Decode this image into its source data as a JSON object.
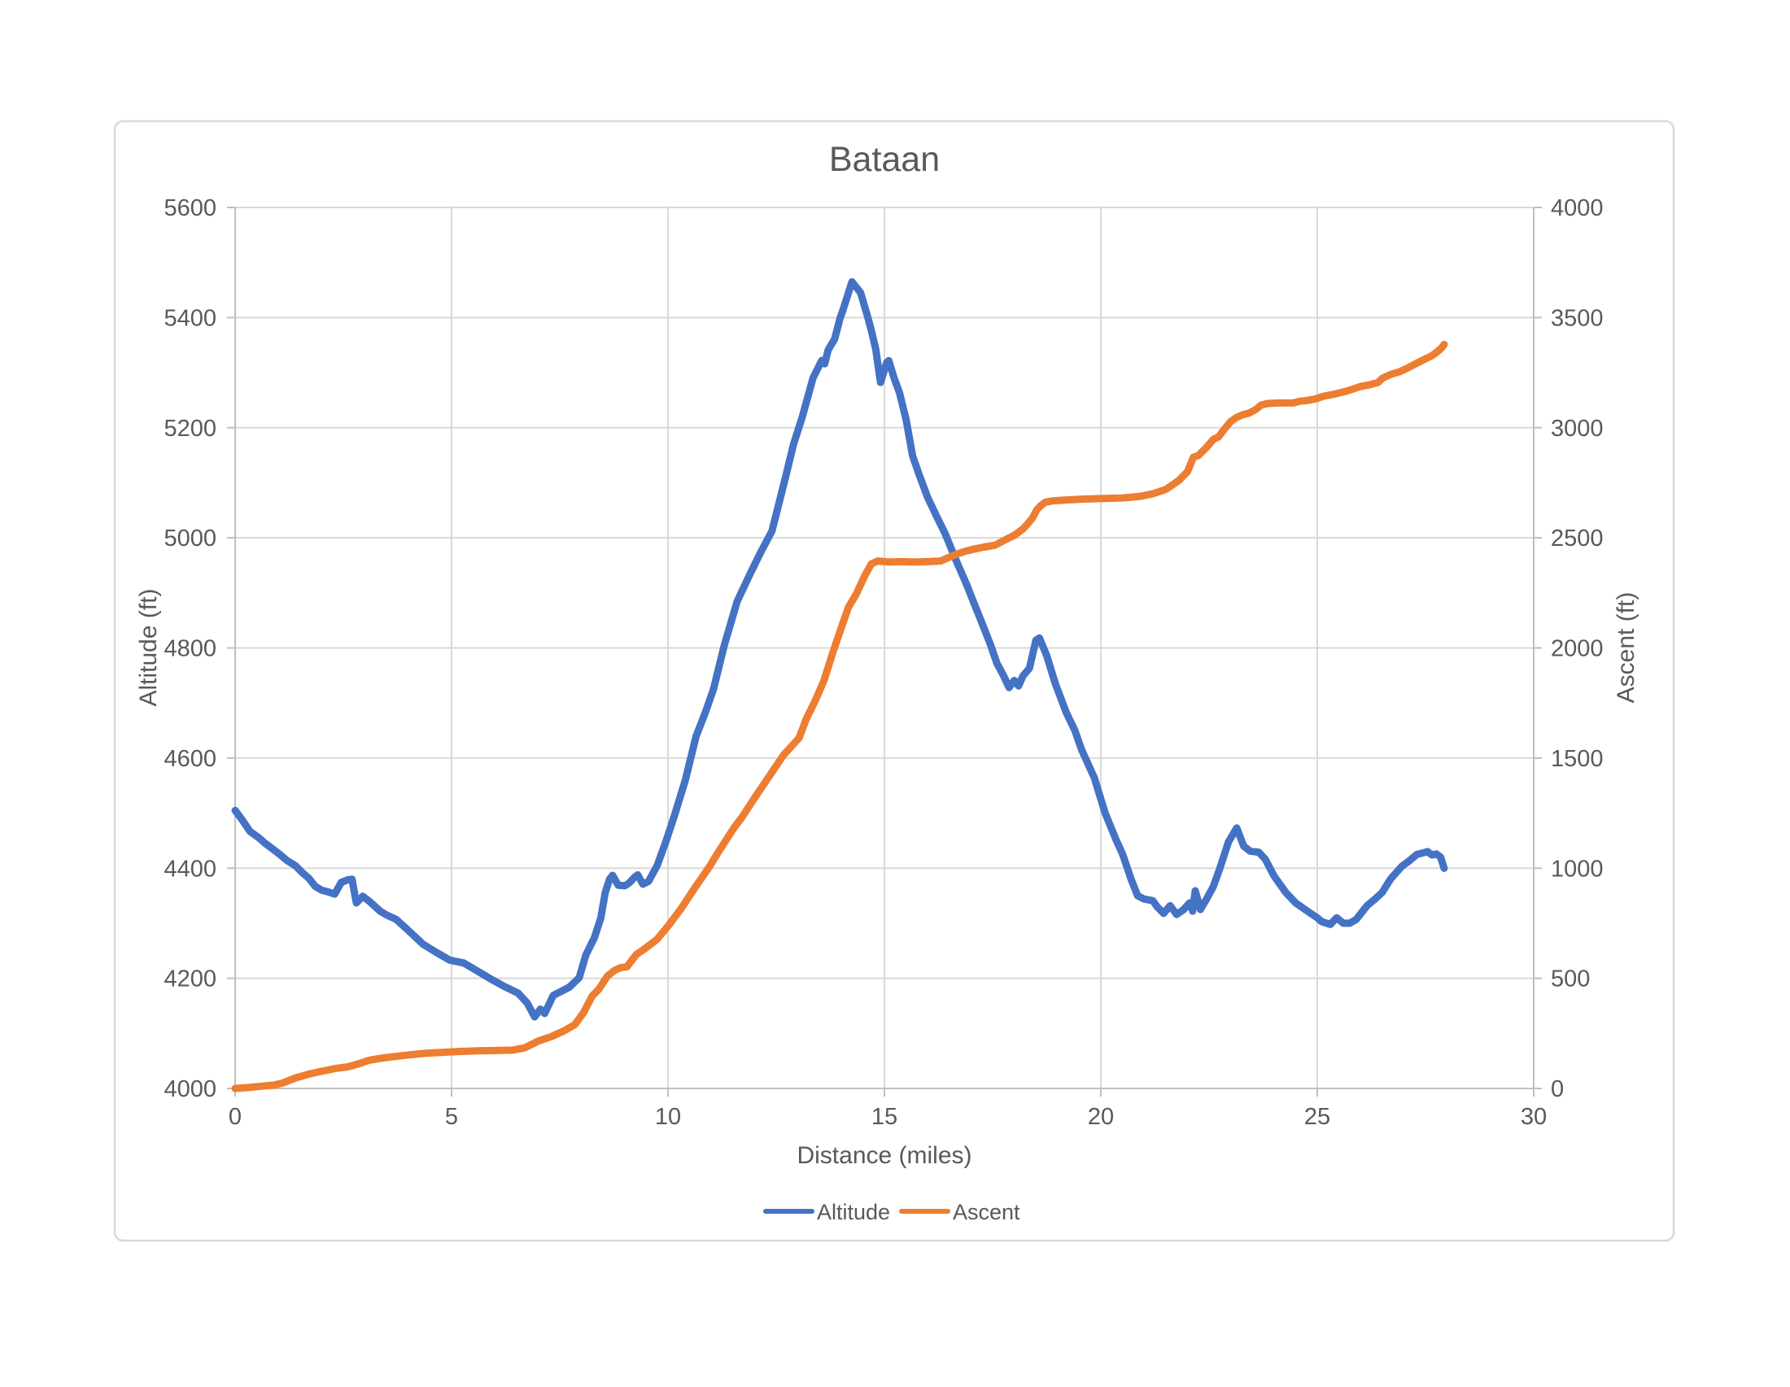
{
  "title": "Bataan",
  "axes": {
    "x": {
      "label": "Distance (miles)",
      "min": 0,
      "max": 30,
      "ticks": [
        0,
        5,
        10,
        15,
        20,
        25,
        30
      ]
    },
    "y_left": {
      "label": "Altitude (ft)",
      "min": 4000,
      "max": 5600,
      "ticks": [
        4000,
        4200,
        4400,
        4600,
        4800,
        5000,
        5200,
        5400,
        5600
      ]
    },
    "y_right": {
      "label": "Ascent (ft)",
      "min": 0,
      "max": 4000,
      "ticks": [
        0,
        500,
        1000,
        1500,
        2000,
        2500,
        3000,
        3500,
        4000
      ]
    }
  },
  "legend": [
    {
      "label": "Altitude",
      "color": "#4472C4"
    },
    {
      "label": "Ascent",
      "color": "#ED7D31"
    }
  ],
  "colors": {
    "altitude": "#4472C4",
    "ascent": "#ED7D31",
    "grid": "#D9D9D9",
    "axis": "#BFBFBF",
    "text": "#595959",
    "border": "#D9D9D9",
    "background": "#FFFFFF"
  },
  "chart_data": {
    "type": "line",
    "title": "Bataan",
    "xlabel": "Distance (miles)",
    "ylabel_left": "Altitude (ft)",
    "ylabel_right": "Ascent (ft)",
    "x_range": [
      0,
      30
    ],
    "y_left_range": [
      4000,
      5600
    ],
    "y_right_range": [
      0,
      4000
    ],
    "grid": true,
    "legend_position": "bottom",
    "series": [
      {
        "name": "Altitude",
        "axis": "left",
        "color": "#4472C4",
        "points": [
          [
            0,
            4505
          ],
          [
            0.17,
            4487
          ],
          [
            0.34,
            4467
          ],
          [
            0.55,
            4455
          ],
          [
            0.68,
            4446
          ],
          [
            0.85,
            4436
          ],
          [
            1.0,
            4427
          ],
          [
            1.2,
            4414
          ],
          [
            1.4,
            4404
          ],
          [
            1.55,
            4392
          ],
          [
            1.7,
            4382
          ],
          [
            1.85,
            4367
          ],
          [
            2.0,
            4360
          ],
          [
            2.15,
            4357
          ],
          [
            2.3,
            4353
          ],
          [
            2.45,
            4374
          ],
          [
            2.6,
            4379
          ],
          [
            2.7,
            4380
          ],
          [
            2.8,
            4337
          ],
          [
            2.95,
            4349
          ],
          [
            3.1,
            4340
          ],
          [
            3.35,
            4322
          ],
          [
            3.5,
            4315
          ],
          [
            3.72,
            4307
          ],
          [
            4.0,
            4287
          ],
          [
            4.34,
            4262
          ],
          [
            4.65,
            4247
          ],
          [
            4.96,
            4233
          ],
          [
            5.28,
            4228
          ],
          [
            5.6,
            4213
          ],
          [
            5.9,
            4199
          ],
          [
            6.2,
            4186
          ],
          [
            6.54,
            4173
          ],
          [
            6.75,
            4155
          ],
          [
            6.92,
            4130
          ],
          [
            7.05,
            4144
          ],
          [
            7.15,
            4136
          ],
          [
            7.35,
            4169
          ],
          [
            7.55,
            4177
          ],
          [
            7.72,
            4184
          ],
          [
            7.95,
            4201
          ],
          [
            8.1,
            4242
          ],
          [
            8.3,
            4274
          ],
          [
            8.45,
            4310
          ],
          [
            8.55,
            4356
          ],
          [
            8.65,
            4380
          ],
          [
            8.72,
            4387
          ],
          [
            8.85,
            4369
          ],
          [
            9.0,
            4368
          ],
          [
            9.1,
            4373
          ],
          [
            9.22,
            4383
          ],
          [
            9.3,
            4388
          ],
          [
            9.42,
            4371
          ],
          [
            9.55,
            4376
          ],
          [
            9.75,
            4405
          ],
          [
            9.95,
            4448
          ],
          [
            10.15,
            4496
          ],
          [
            10.4,
            4560
          ],
          [
            10.65,
            4640
          ],
          [
            10.85,
            4680
          ],
          [
            11.05,
            4725
          ],
          [
            11.3,
            4805
          ],
          [
            11.6,
            4885
          ],
          [
            11.9,
            4935
          ],
          [
            12.15,
            4975
          ],
          [
            12.4,
            5012
          ],
          [
            12.7,
            5105
          ],
          [
            12.9,
            5170
          ],
          [
            13.1,
            5219
          ],
          [
            13.35,
            5290
          ],
          [
            13.55,
            5322
          ],
          [
            13.62,
            5316
          ],
          [
            13.7,
            5341
          ],
          [
            13.85,
            5361
          ],
          [
            13.98,
            5400
          ],
          [
            14.04,
            5413
          ],
          [
            14.25,
            5465
          ],
          [
            14.45,
            5445
          ],
          [
            14.6,
            5405
          ],
          [
            14.7,
            5376
          ],
          [
            14.8,
            5342
          ],
          [
            14.91,
            5282
          ],
          [
            15.05,
            5318
          ],
          [
            15.1,
            5322
          ],
          [
            15.22,
            5291
          ],
          [
            15.35,
            5263
          ],
          [
            15.5,
            5215
          ],
          [
            15.65,
            5149
          ],
          [
            15.8,
            5115
          ],
          [
            16.0,
            5073
          ],
          [
            16.2,
            5040
          ],
          [
            16.4,
            5008
          ],
          [
            16.65,
            4960
          ],
          [
            16.9,
            4915
          ],
          [
            17.05,
            4885
          ],
          [
            17.25,
            4846
          ],
          [
            17.45,
            4806
          ],
          [
            17.6,
            4772
          ],
          [
            17.75,
            4750
          ],
          [
            17.88,
            4728
          ],
          [
            18.0,
            4741
          ],
          [
            18.1,
            4731
          ],
          [
            18.2,
            4749
          ],
          [
            18.35,
            4763
          ],
          [
            18.5,
            4814
          ],
          [
            18.58,
            4818
          ],
          [
            18.75,
            4786
          ],
          [
            18.95,
            4735
          ],
          [
            19.2,
            4683
          ],
          [
            19.4,
            4650
          ],
          [
            19.55,
            4616
          ],
          [
            19.85,
            4564
          ],
          [
            20.1,
            4500
          ],
          [
            20.35,
            4452
          ],
          [
            20.5,
            4426
          ],
          [
            20.7,
            4380
          ],
          [
            20.85,
            4350
          ],
          [
            21.0,
            4344
          ],
          [
            21.2,
            4341
          ],
          [
            21.3,
            4330
          ],
          [
            21.45,
            4318
          ],
          [
            21.6,
            4332
          ],
          [
            21.75,
            4316
          ],
          [
            21.9,
            4324
          ],
          [
            22.05,
            4337
          ],
          [
            22.12,
            4322
          ],
          [
            22.18,
            4359
          ],
          [
            22.3,
            4325
          ],
          [
            22.45,
            4345
          ],
          [
            22.6,
            4367
          ],
          [
            22.75,
            4400
          ],
          [
            22.95,
            4448
          ],
          [
            23.14,
            4473
          ],
          [
            23.3,
            4440
          ],
          [
            23.45,
            4431
          ],
          [
            23.65,
            4429
          ],
          [
            23.8,
            4416
          ],
          [
            24.0,
            4386
          ],
          [
            24.27,
            4356
          ],
          [
            24.5,
            4337
          ],
          [
            24.77,
            4322
          ],
          [
            25.0,
            4310
          ],
          [
            25.1,
            4303
          ],
          [
            25.3,
            4298
          ],
          [
            25.45,
            4310
          ],
          [
            25.6,
            4300
          ],
          [
            25.75,
            4300
          ],
          [
            25.9,
            4307
          ],
          [
            26.15,
            4332
          ],
          [
            26.35,
            4345
          ],
          [
            26.5,
            4356
          ],
          [
            26.7,
            4381
          ],
          [
            26.95,
            4403
          ],
          [
            27.15,
            4415
          ],
          [
            27.3,
            4425
          ],
          [
            27.45,
            4428
          ],
          [
            27.55,
            4430
          ],
          [
            27.65,
            4424
          ],
          [
            27.75,
            4426
          ],
          [
            27.85,
            4420
          ],
          [
            27.93,
            4400
          ]
        ]
      },
      {
        "name": "Ascent",
        "axis": "right",
        "color": "#ED7D31",
        "points": [
          [
            0,
            0
          ],
          [
            0.3,
            4
          ],
          [
            0.6,
            10
          ],
          [
            0.9,
            16
          ],
          [
            1.1,
            25
          ],
          [
            1.4,
            48
          ],
          [
            1.7,
            65
          ],
          [
            2.0,
            78
          ],
          [
            2.3,
            90
          ],
          [
            2.6,
            98
          ],
          [
            2.9,
            115
          ],
          [
            3.1,
            128
          ],
          [
            3.4,
            138
          ],
          [
            3.7,
            145
          ],
          [
            4.0,
            152
          ],
          [
            4.4,
            160
          ],
          [
            4.8,
            164
          ],
          [
            5.2,
            168
          ],
          [
            5.6,
            171
          ],
          [
            6.0,
            172
          ],
          [
            6.4,
            174
          ],
          [
            6.7,
            185
          ],
          [
            7.0,
            215
          ],
          [
            7.3,
            235
          ],
          [
            7.6,
            262
          ],
          [
            7.85,
            290
          ],
          [
            8.05,
            345
          ],
          [
            8.25,
            420
          ],
          [
            8.4,
            450
          ],
          [
            8.6,
            510
          ],
          [
            8.76,
            535
          ],
          [
            8.9,
            548
          ],
          [
            9.05,
            552
          ],
          [
            9.27,
            609
          ],
          [
            9.42,
            628
          ],
          [
            9.6,
            655
          ],
          [
            9.74,
            676
          ],
          [
            10.02,
            742
          ],
          [
            10.3,
            816
          ],
          [
            10.6,
            905
          ],
          [
            10.96,
            1008
          ],
          [
            11.17,
            1075
          ],
          [
            11.52,
            1182
          ],
          [
            11.73,
            1237
          ],
          [
            12.01,
            1322
          ],
          [
            12.29,
            1403
          ],
          [
            12.67,
            1514
          ],
          [
            13.03,
            1592
          ],
          [
            13.2,
            1680
          ],
          [
            13.4,
            1760
          ],
          [
            13.6,
            1850
          ],
          [
            13.8,
            1975
          ],
          [
            14.0,
            2090
          ],
          [
            14.17,
            2185
          ],
          [
            14.35,
            2245
          ],
          [
            14.55,
            2330
          ],
          [
            14.7,
            2382
          ],
          [
            14.85,
            2395
          ],
          [
            15.1,
            2390
          ],
          [
            15.4,
            2392
          ],
          [
            15.7,
            2390
          ],
          [
            16.0,
            2392
          ],
          [
            16.3,
            2395
          ],
          [
            16.5,
            2412
          ],
          [
            16.7,
            2428
          ],
          [
            16.9,
            2441
          ],
          [
            17.1,
            2450
          ],
          [
            17.3,
            2458
          ],
          [
            17.55,
            2466
          ],
          [
            17.8,
            2492
          ],
          [
            18.0,
            2511
          ],
          [
            18.2,
            2540
          ],
          [
            18.32,
            2566
          ],
          [
            18.42,
            2590
          ],
          [
            18.52,
            2627
          ],
          [
            18.62,
            2648
          ],
          [
            18.72,
            2662
          ],
          [
            18.9,
            2668
          ],
          [
            19.2,
            2672
          ],
          [
            19.6,
            2676
          ],
          [
            20.0,
            2678
          ],
          [
            20.5,
            2681
          ],
          [
            20.9,
            2688
          ],
          [
            21.2,
            2700
          ],
          [
            21.5,
            2720
          ],
          [
            21.8,
            2760
          ],
          [
            22.0,
            2800
          ],
          [
            22.14,
            2866
          ],
          [
            22.25,
            2873
          ],
          [
            22.44,
            2910
          ],
          [
            22.6,
            2947
          ],
          [
            22.72,
            2958
          ],
          [
            22.86,
            2995
          ],
          [
            23.0,
            3028
          ],
          [
            23.14,
            3047
          ],
          [
            23.27,
            3058
          ],
          [
            23.42,
            3066
          ],
          [
            23.58,
            3083
          ],
          [
            23.7,
            3102
          ],
          [
            23.85,
            3110
          ],
          [
            24.1,
            3112
          ],
          [
            24.45,
            3113
          ],
          [
            24.6,
            3120
          ],
          [
            24.77,
            3124
          ],
          [
            24.96,
            3131
          ],
          [
            25.15,
            3143
          ],
          [
            25.34,
            3150
          ],
          [
            25.5,
            3157
          ],
          [
            25.71,
            3168
          ],
          [
            25.83,
            3176
          ],
          [
            26.0,
            3187
          ],
          [
            26.2,
            3194
          ],
          [
            26.4,
            3205
          ],
          [
            26.5,
            3224
          ],
          [
            26.7,
            3242
          ],
          [
            26.9,
            3254
          ],
          [
            27.1,
            3272
          ],
          [
            27.27,
            3290
          ],
          [
            27.46,
            3309
          ],
          [
            27.65,
            3327
          ],
          [
            27.78,
            3346
          ],
          [
            27.88,
            3364
          ],
          [
            27.93,
            3378
          ]
        ]
      }
    ]
  }
}
